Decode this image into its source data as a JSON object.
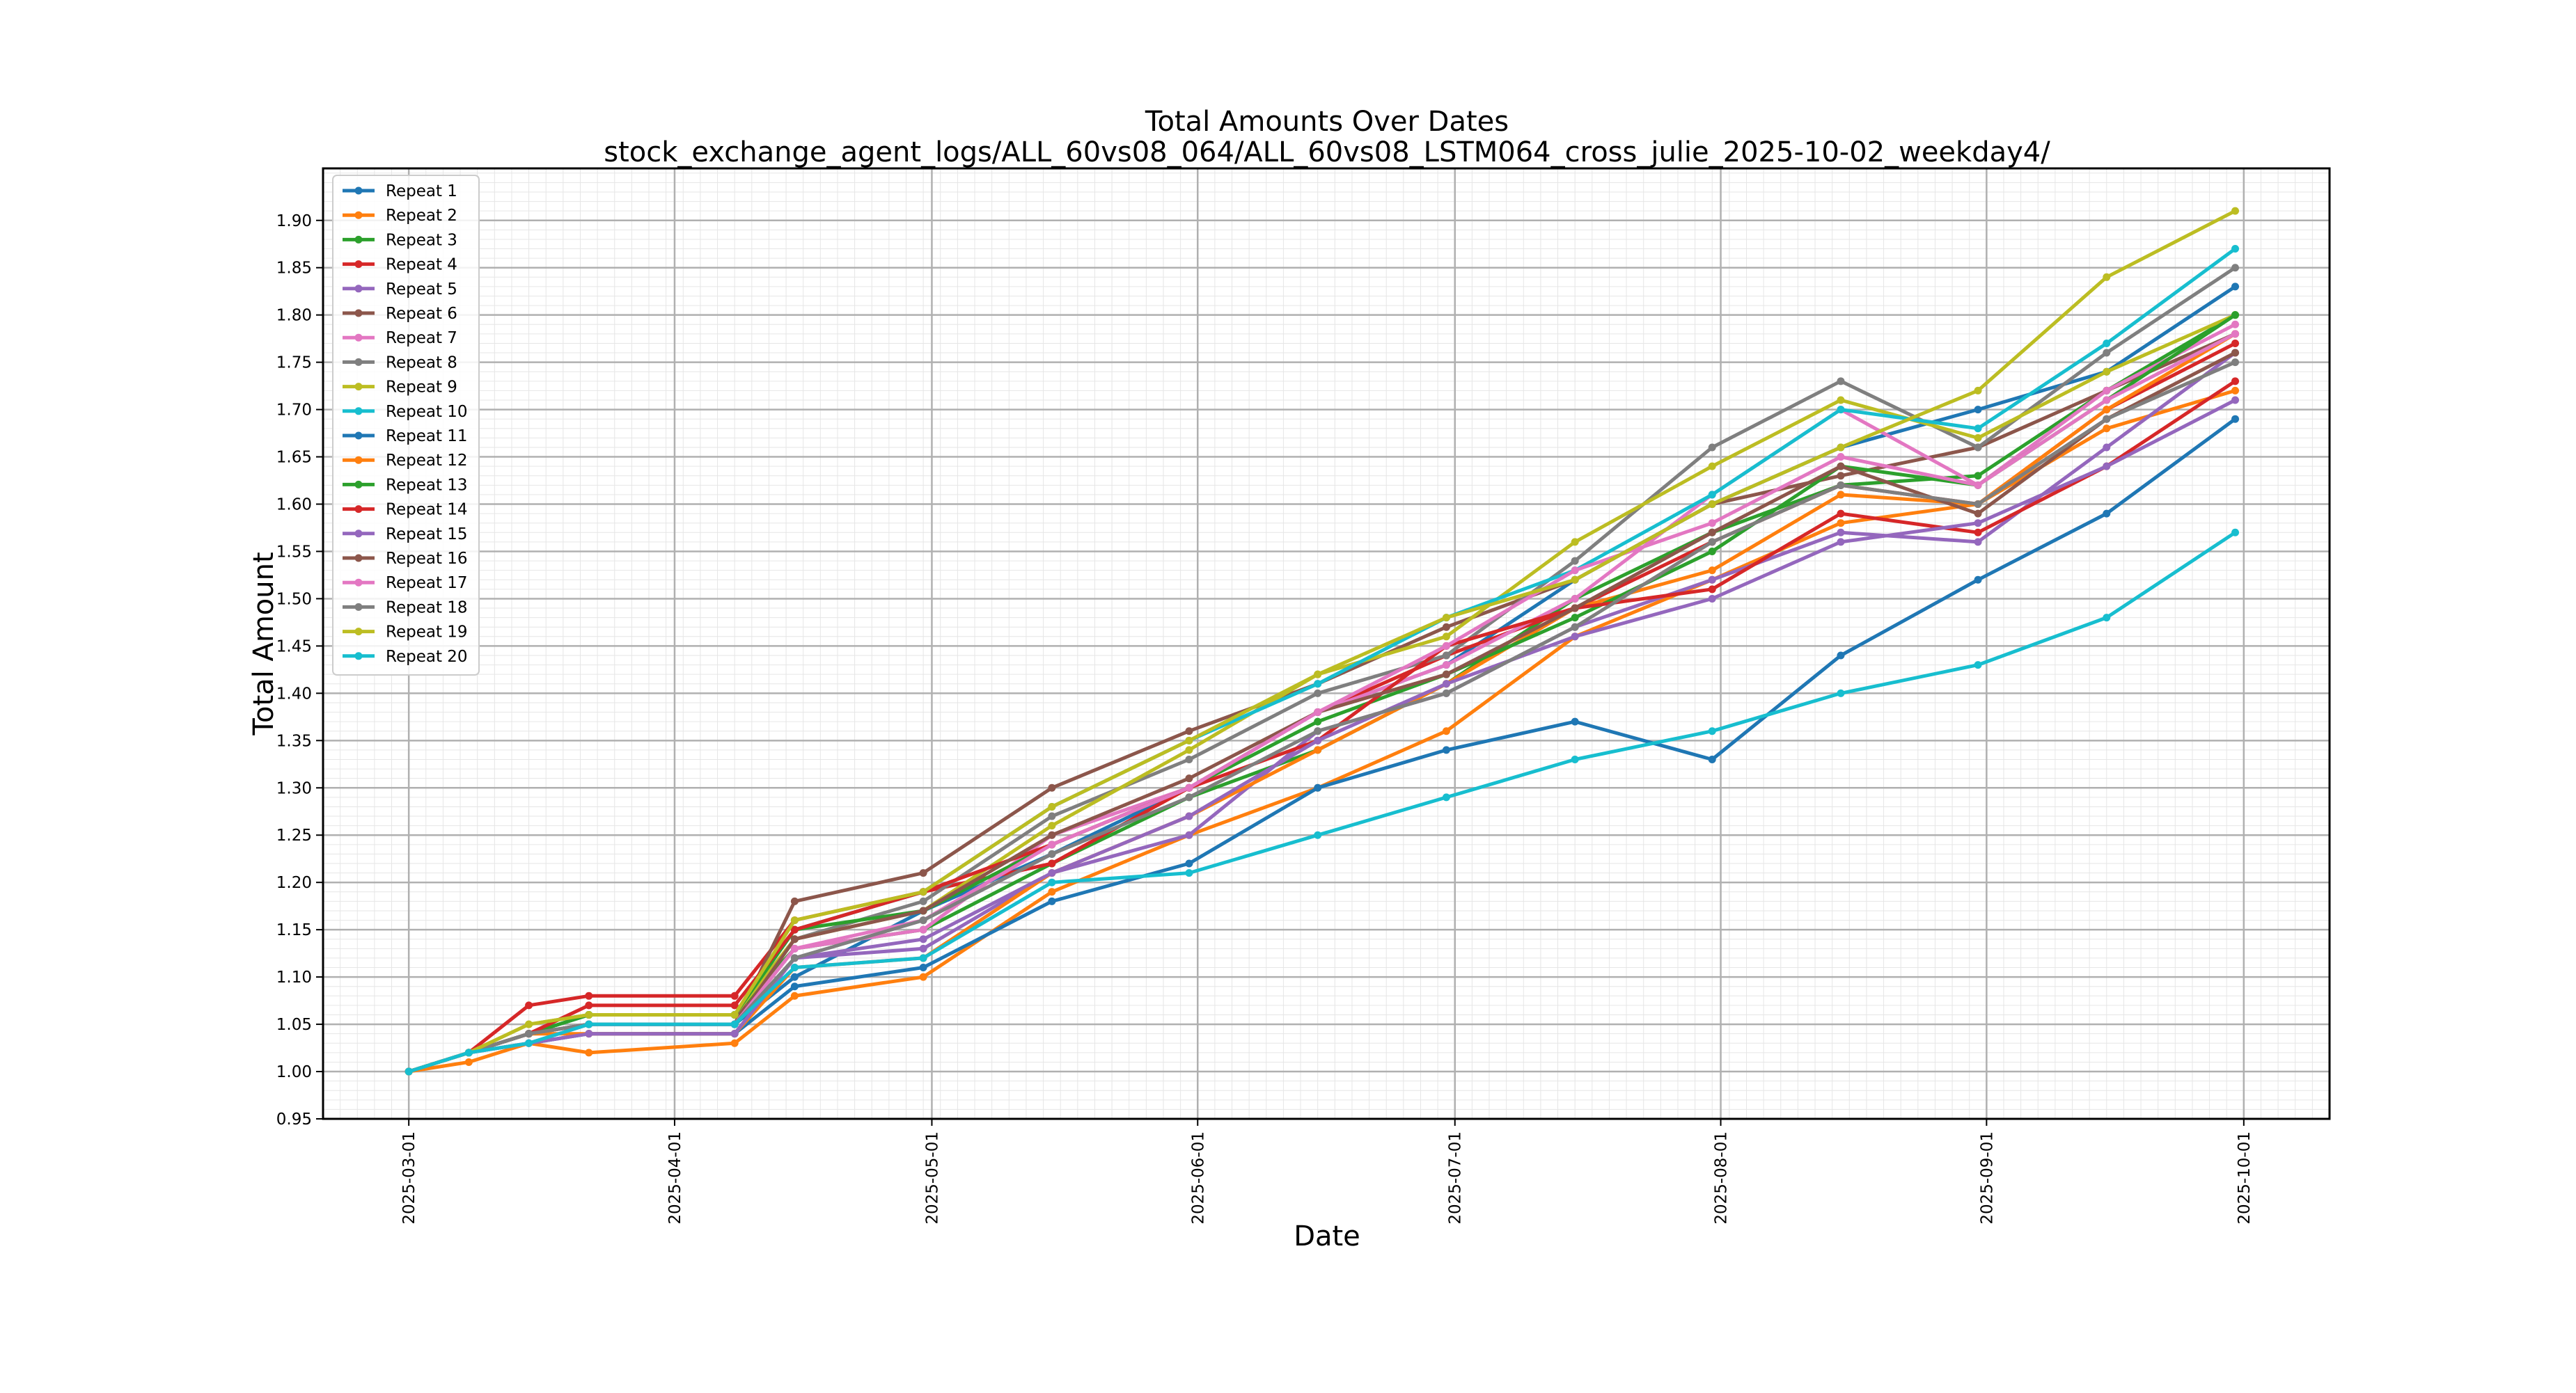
{
  "chart_data": {
    "type": "line",
    "title": "Total Amounts Over Dates",
    "subtitle": "stock_exchange_agent_logs/ALL_60vs08_064/ALL_60vs08_LSTM064_cross_julie_2025-10-02_weekday4/",
    "xlabel": "Date",
    "ylabel": "Total Amount",
    "x_tick_labels": [
      "2025-03-01",
      "2025-04-01",
      "2025-05-01",
      "2025-06-01",
      "2025-07-01",
      "2025-08-01",
      "2025-09-01",
      "2025-10-01"
    ],
    "y_tick_labels": [
      "0.95",
      "1.00",
      "1.05",
      "1.10",
      "1.15",
      "1.20",
      "1.25",
      "1.30",
      "1.35",
      "1.40",
      "1.45",
      "1.50",
      "1.55",
      "1.60",
      "1.65",
      "1.70",
      "1.75",
      "1.80",
      "1.85",
      "1.90"
    ],
    "xlim": [
      "2025-02-19",
      "2025-10-11"
    ],
    "ylim": [
      0.95,
      1.955
    ],
    "grid": "major and minor",
    "legend_position": "upper-left",
    "line_style": "line with circle markers",
    "series": [
      {
        "name": "Repeat 1",
        "color": "#1f77b4",
        "values": [
          1.0,
          1.02,
          1.04,
          1.05,
          1.05,
          1.1,
          1.17,
          1.23,
          1.3,
          1.38,
          1.43,
          1.52,
          1.6,
          1.66,
          1.7,
          1.74,
          1.83
        ]
      },
      {
        "name": "Repeat 2",
        "color": "#ff7f0e",
        "values": [
          1.0,
          1.01,
          1.03,
          1.02,
          1.03,
          1.08,
          1.1,
          1.19,
          1.25,
          1.3,
          1.36,
          1.46,
          1.52,
          1.58,
          1.6,
          1.68,
          1.72
        ]
      },
      {
        "name": "Repeat 3",
        "color": "#2ca02c",
        "values": [
          1.0,
          1.02,
          1.04,
          1.06,
          1.06,
          1.13,
          1.15,
          1.22,
          1.29,
          1.34,
          1.41,
          1.5,
          1.57,
          1.62,
          1.63,
          1.72,
          1.8
        ]
      },
      {
        "name": "Repeat 4",
        "color": "#d62728",
        "values": [
          1.0,
          1.02,
          1.07,
          1.08,
          1.08,
          1.16,
          1.19,
          1.22,
          1.3,
          1.38,
          1.44,
          1.49,
          1.56,
          1.62,
          1.6,
          1.7,
          1.77
        ]
      },
      {
        "name": "Repeat 5",
        "color": "#9467bd",
        "values": [
          1.0,
          1.02,
          1.03,
          1.04,
          1.04,
          1.12,
          1.13,
          1.21,
          1.25,
          1.36,
          1.4,
          1.47,
          1.52,
          1.57,
          1.56,
          1.66,
          1.76
        ]
      },
      {
        "name": "Repeat 6",
        "color": "#8c564b",
        "values": [
          1.0,
          1.02,
          1.04,
          1.05,
          1.05,
          1.18,
          1.21,
          1.3,
          1.36,
          1.41,
          1.47,
          1.52,
          1.6,
          1.63,
          1.66,
          1.72,
          1.78
        ]
      },
      {
        "name": "Repeat 7",
        "color": "#e377c2",
        "values": [
          1.0,
          1.02,
          1.04,
          1.05,
          1.05,
          1.13,
          1.15,
          1.25,
          1.3,
          1.38,
          1.43,
          1.5,
          1.61,
          1.7,
          1.62,
          1.72,
          1.79
        ]
      },
      {
        "name": "Repeat 8",
        "color": "#7f7f7f",
        "values": [
          1.0,
          1.02,
          1.04,
          1.06,
          1.06,
          1.14,
          1.18,
          1.27,
          1.33,
          1.4,
          1.44,
          1.54,
          1.66,
          1.73,
          1.66,
          1.76,
          1.85
        ]
      },
      {
        "name": "Repeat 9",
        "color": "#bcbd22",
        "values": [
          1.0,
          1.02,
          1.05,
          1.06,
          1.06,
          1.14,
          1.17,
          1.26,
          1.34,
          1.42,
          1.46,
          1.56,
          1.64,
          1.71,
          1.67,
          1.74,
          1.8
        ]
      },
      {
        "name": "Repeat 10",
        "color": "#17becf",
        "values": [
          1.0,
          1.02,
          1.04,
          1.06,
          1.06,
          1.15,
          1.19,
          1.28,
          1.35,
          1.41,
          1.48,
          1.53,
          1.61,
          1.7,
          1.68,
          1.77,
          1.87
        ]
      },
      {
        "name": "Repeat 11",
        "color": "#1f77b4",
        "values": [
          1.0,
          1.02,
          1.03,
          1.04,
          1.04,
          1.09,
          1.11,
          1.18,
          1.22,
          1.3,
          1.34,
          1.37,
          1.33,
          1.44,
          1.52,
          1.59,
          1.69
        ]
      },
      {
        "name": "Repeat 12",
        "color": "#ff7f0e",
        "values": [
          1.0,
          1.02,
          1.04,
          1.04,
          1.04,
          1.11,
          1.12,
          1.21,
          1.27,
          1.34,
          1.41,
          1.49,
          1.53,
          1.61,
          1.6,
          1.7,
          1.78
        ]
      },
      {
        "name": "Repeat 13",
        "color": "#2ca02c",
        "values": [
          1.0,
          1.02,
          1.04,
          1.06,
          1.06,
          1.15,
          1.17,
          1.24,
          1.3,
          1.37,
          1.42,
          1.48,
          1.55,
          1.64,
          1.62,
          1.71,
          1.8
        ]
      },
      {
        "name": "Repeat 14",
        "color": "#d62728",
        "values": [
          1.0,
          1.02,
          1.04,
          1.07,
          1.07,
          1.15,
          1.19,
          1.24,
          1.3,
          1.35,
          1.45,
          1.49,
          1.51,
          1.59,
          1.57,
          1.64,
          1.73
        ]
      },
      {
        "name": "Repeat 15",
        "color": "#9467bd",
        "values": [
          1.0,
          1.02,
          1.03,
          1.04,
          1.04,
          1.12,
          1.14,
          1.21,
          1.27,
          1.35,
          1.41,
          1.46,
          1.5,
          1.56,
          1.58,
          1.64,
          1.71
        ]
      },
      {
        "name": "Repeat 16",
        "color": "#8c564b",
        "values": [
          1.0,
          1.02,
          1.04,
          1.05,
          1.05,
          1.14,
          1.17,
          1.25,
          1.31,
          1.38,
          1.42,
          1.49,
          1.57,
          1.64,
          1.59,
          1.69,
          1.76
        ]
      },
      {
        "name": "Repeat 17",
        "color": "#e377c2",
        "values": [
          1.0,
          1.02,
          1.03,
          1.05,
          1.05,
          1.13,
          1.16,
          1.24,
          1.3,
          1.38,
          1.45,
          1.53,
          1.58,
          1.65,
          1.62,
          1.71,
          1.78
        ]
      },
      {
        "name": "Repeat 18",
        "color": "#7f7f7f",
        "values": [
          1.0,
          1.02,
          1.04,
          1.05,
          1.05,
          1.12,
          1.16,
          1.23,
          1.29,
          1.36,
          1.4,
          1.47,
          1.56,
          1.62,
          1.6,
          1.69,
          1.75
        ]
      },
      {
        "name": "Repeat 19",
        "color": "#bcbd22",
        "values": [
          1.0,
          1.02,
          1.05,
          1.06,
          1.06,
          1.16,
          1.19,
          1.28,
          1.35,
          1.42,
          1.48,
          1.52,
          1.6,
          1.66,
          1.72,
          1.84,
          1.91
        ]
      },
      {
        "name": "Repeat 20",
        "color": "#17becf",
        "values": [
          1.0,
          1.02,
          1.03,
          1.05,
          1.05,
          1.11,
          1.12,
          1.2,
          1.21,
          1.25,
          1.29,
          1.33,
          1.36,
          1.4,
          1.43,
          1.48,
          1.57
        ]
      }
    ],
    "dates": [
      "2025-03-01",
      "2025-03-08",
      "2025-03-15",
      "2025-03-22",
      "2025-04-08",
      "2025-04-15",
      "2025-04-30",
      "2025-05-15",
      "2025-05-31",
      "2025-06-15",
      "2025-06-30",
      "2025-07-15",
      "2025-07-31",
      "2025-08-15",
      "2025-08-31",
      "2025-09-15",
      "2025-09-30"
    ]
  }
}
